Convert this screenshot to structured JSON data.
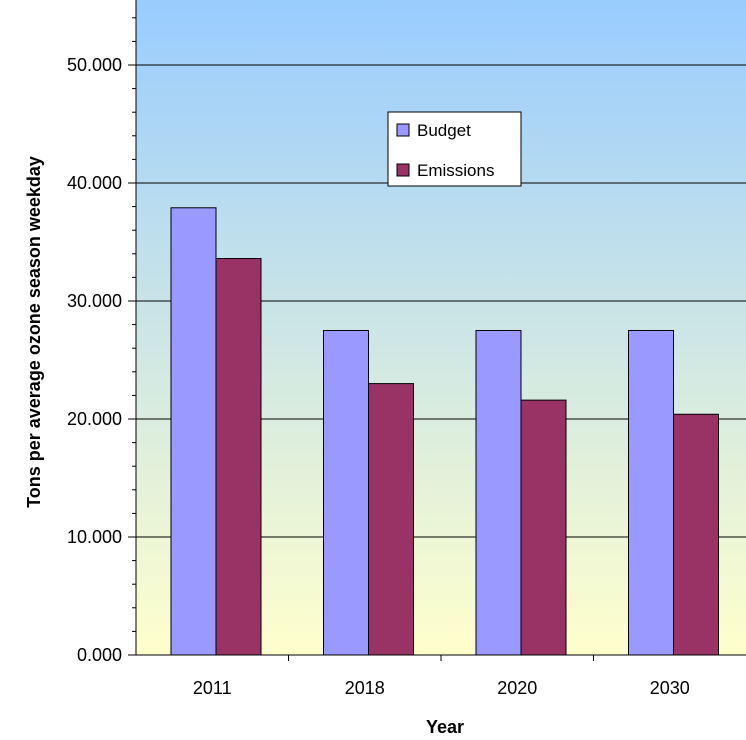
{
  "chart_data": {
    "type": "bar",
    "title": "",
    "xlabel": "Year",
    "ylabel": "Tons per average ozone season weekday",
    "categories": [
      "2011",
      "2018",
      "2020",
      "2030"
    ],
    "series": [
      {
        "name": "Budget",
        "values": [
          37.9,
          27.5,
          27.5,
          27.5
        ],
        "color": "#9999ff"
      },
      {
        "name": "Emissions",
        "values": [
          33.6,
          23.0,
          21.6,
          20.4
        ],
        "color": "#993366"
      }
    ],
    "ylim": [
      0,
      55
    ],
    "yticks": [
      0,
      10,
      20,
      30,
      40,
      50
    ],
    "ytick_labels": [
      "0.000",
      "10.000",
      "20.000",
      "30.000",
      "40.000",
      "50.000"
    ],
    "grid": true,
    "legend_position": "upper-center",
    "background": {
      "top": "#99ccff",
      "bottom": "#ffffcc"
    }
  }
}
